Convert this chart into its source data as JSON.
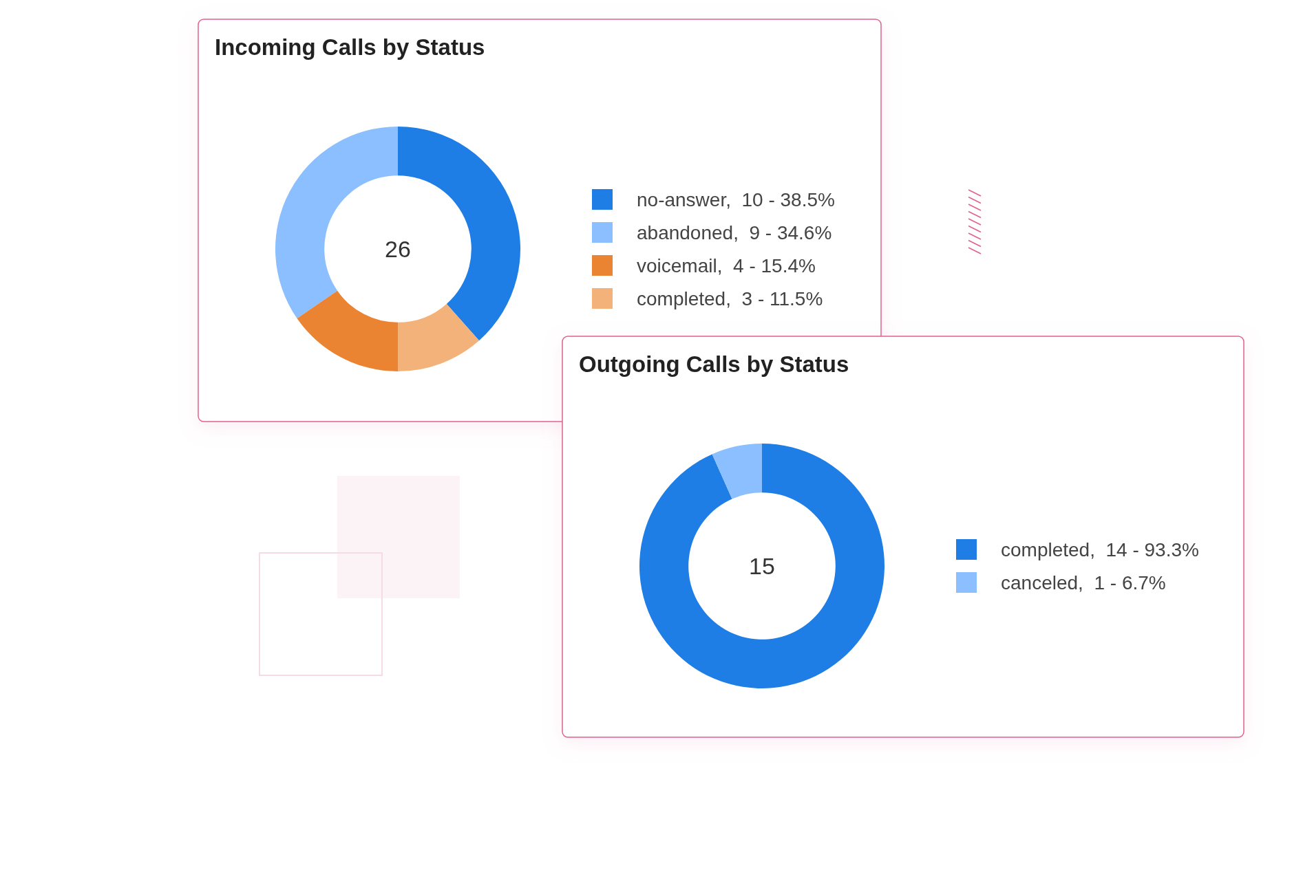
{
  "chart_data": [
    {
      "type": "donut",
      "title": "Incoming Calls by Status",
      "categories": [
        "no-answer",
        "abandoned",
        "voicemail",
        "completed"
      ],
      "values": [
        10,
        9,
        4,
        3
      ],
      "colors": [
        "#1f7de6",
        "#8bbfff",
        "#ea8332",
        "#f3b27a"
      ],
      "value_labels": [
        "10 - 38.5%",
        "9 - 34.6%",
        "4 - 15.4%",
        "3 - 11.5%"
      ],
      "annotations": [
        "26"
      ],
      "legend": "right"
    },
    {
      "type": "donut",
      "title": "Outgoing Calls by Status",
      "categories": [
        "completed",
        "canceled"
      ],
      "values": [
        14,
        1
      ],
      "colors": [
        "#1f7de6",
        "#8bbfff"
      ],
      "value_labels": [
        "14 - 93.3%",
        "1 - 6.7%"
      ],
      "annotations": [
        "15"
      ],
      "legend": "right"
    }
  ]
}
